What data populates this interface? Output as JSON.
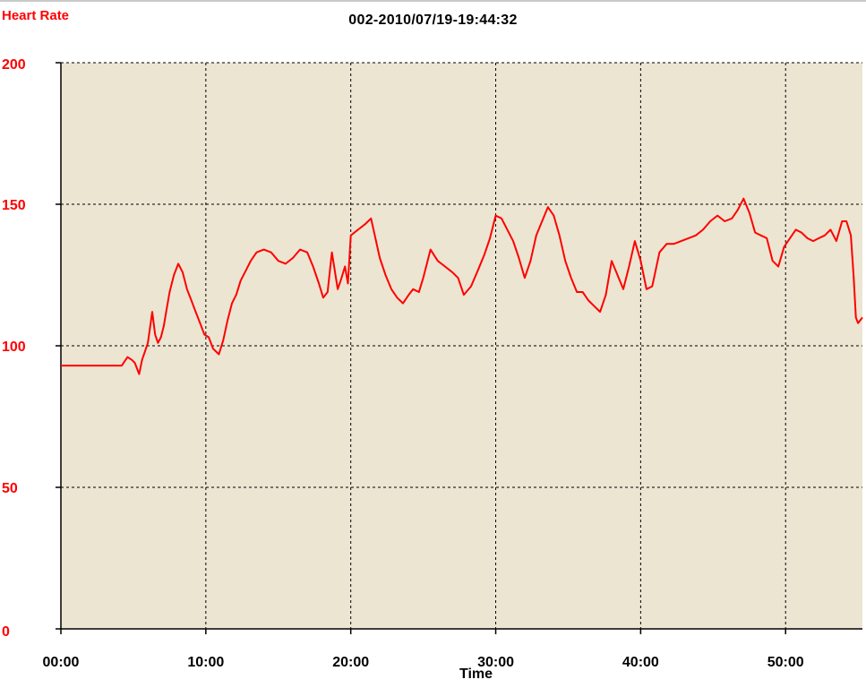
{
  "chart_data": {
    "type": "line",
    "title": "002-2010/07/19-19:44:32",
    "ylabel": "Heart Rate",
    "xlabel": "Time",
    "x_unit": "minutes",
    "xlim": [
      0,
      55.3
    ],
    "ylim": [
      0,
      200
    ],
    "y_ticks": [
      "0",
      "50",
      "100",
      "150",
      "200"
    ],
    "y_tick_values": [
      0,
      50,
      100,
      150,
      200
    ],
    "x_ticks": [
      "00:00",
      "10:00",
      "20:00",
      "30:00",
      "40:00",
      "50:00"
    ],
    "x_tick_values": [
      0,
      10,
      20,
      30,
      40,
      50
    ],
    "grid": true,
    "colors": {
      "line": "#ff0000",
      "plot_bg": "#ece5d2",
      "grid": "#000000",
      "axis_text_y": "#ff0000",
      "axis_text_x": "#000000"
    },
    "series": [
      {
        "x": [
          0,
          4.2,
          4.6,
          4.9,
          5.1,
          5.4,
          5.6,
          5.8,
          6.0,
          6.3,
          6.5,
          6.7,
          6.9,
          7.1,
          7.3,
          7.5,
          7.8,
          8.1,
          8.4,
          8.7,
          9.0,
          9.3,
          9.6,
          9.9,
          10.2,
          10.5,
          10.9,
          11.2,
          11.5,
          11.8,
          12.1,
          12.4,
          12.8,
          13.1,
          13.5,
          14.0,
          14.5,
          15.0,
          15.5,
          16.0,
          16.5,
          17.0,
          17.4,
          17.8,
          18.1,
          18.4,
          18.7,
          19.1,
          19.3,
          19.6,
          19.8,
          20.0,
          20.5,
          21.0,
          21.4,
          21.7,
          22.0,
          22.4,
          22.8,
          23.2,
          23.6,
          24.0,
          24.3,
          24.7,
          25.0,
          25.5,
          26.0,
          26.5,
          27.0,
          27.4,
          27.8,
          28.3,
          28.8,
          29.2,
          29.6,
          30.0,
          30.4,
          30.8,
          31.2,
          31.6,
          32.0,
          32.4,
          32.8,
          33.2,
          33.6,
          34.0,
          34.4,
          34.8,
          35.2,
          35.6,
          36.0,
          36.4,
          36.8,
          37.2,
          37.6,
          38.0,
          38.4,
          38.8,
          39.2,
          39.6,
          40.0,
          40.4,
          40.8,
          41.3,
          41.8,
          42.3,
          42.8,
          43.3,
          43.8,
          44.3,
          44.8,
          45.3,
          45.8,
          46.3,
          46.7,
          47.1,
          47.5,
          47.9,
          48.3,
          48.7,
          49.1,
          49.5,
          49.9,
          50.3,
          50.7,
          51.1,
          51.5,
          51.9,
          52.3,
          52.7,
          53.1,
          53.5,
          53.9,
          54.2,
          54.5,
          54.7,
          54.85,
          55.0,
          55.3
        ],
        "y": [
          93,
          93,
          96,
          95,
          94,
          90,
          95,
          98,
          101,
          112,
          104,
          101,
          103,
          107,
          113,
          119,
          125,
          129,
          126,
          120,
          116,
          112,
          108,
          104,
          103,
          99,
          97,
          102,
          109,
          115,
          118,
          123,
          127,
          130,
          133,
          134,
          133,
          130,
          129,
          131,
          134,
          133,
          128,
          122,
          117,
          119,
          133,
          120,
          123,
          128,
          122,
          139,
          141,
          143,
          145,
          138,
          131,
          125,
          120,
          117,
          115,
          118,
          120,
          119,
          124,
          134,
          130,
          128,
          126,
          124,
          118,
          121,
          127,
          132,
          138,
          146,
          145,
          141,
          137,
          131,
          124,
          130,
          139,
          144,
          149,
          146,
          139,
          130,
          124,
          119,
          119,
          116,
          114,
          112,
          118,
          130,
          125,
          120,
          128,
          137,
          130,
          120,
          121,
          133,
          136,
          136,
          137,
          138,
          139,
          141,
          144,
          146,
          144,
          145,
          148,
          152,
          147,
          140,
          139,
          138,
          130,
          128,
          135,
          138,
          141,
          140,
          138,
          137,
          138,
          139,
          141,
          137,
          144,
          144,
          139,
          124,
          110,
          108,
          110
        ]
      }
    ]
  }
}
